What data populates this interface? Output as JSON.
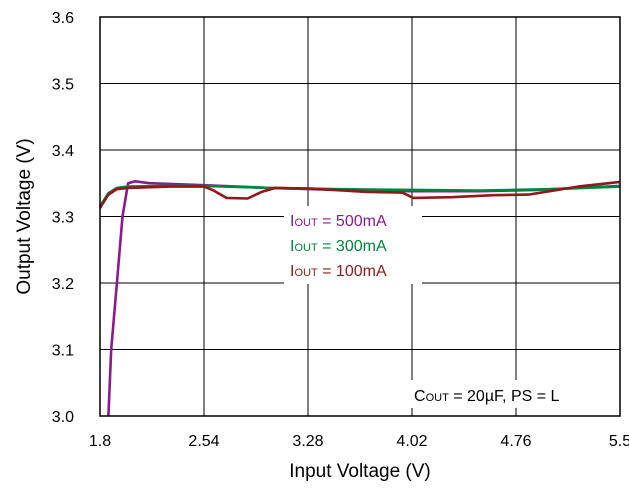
{
  "chart_data": {
    "type": "line",
    "xlabel": "Input Voltage (V)",
    "ylabel": "Output Voltage (V)",
    "xlim": [
      1.8,
      5.5
    ],
    "ylim": [
      3.0,
      3.6
    ],
    "x_ticks": [
      "1.8",
      "2.54",
      "3.28",
      "4.02",
      "4.76",
      "5.5"
    ],
    "y_ticks": [
      "3.6",
      "3.5",
      "3.4",
      "3.3",
      "3.2",
      "3.1",
      "3.0"
    ],
    "grid": true,
    "series": [
      {
        "name": "IOUT = 500mA",
        "color": "#8b1a8f",
        "points": [
          [
            1.86,
            3.0
          ],
          [
            1.88,
            3.1
          ],
          [
            1.92,
            3.2
          ],
          [
            1.96,
            3.3
          ],
          [
            2.0,
            3.35
          ],
          [
            2.05,
            3.353
          ],
          [
            2.15,
            3.35
          ],
          [
            2.3,
            3.349
          ],
          [
            2.54,
            3.347
          ],
          [
            3.0,
            3.343
          ],
          [
            3.5,
            3.34
          ],
          [
            4.0,
            3.338
          ],
          [
            4.5,
            3.338
          ],
          [
            4.9,
            3.34
          ],
          [
            5.2,
            3.343
          ],
          [
            5.5,
            3.346
          ]
        ]
      },
      {
        "name": "IOUT = 300mA",
        "color": "#00853e",
        "points": [
          [
            1.8,
            3.315
          ],
          [
            1.86,
            3.335
          ],
          [
            1.92,
            3.343
          ],
          [
            2.0,
            3.345
          ],
          [
            2.3,
            3.346
          ],
          [
            2.54,
            3.346
          ],
          [
            3.0,
            3.343
          ],
          [
            3.5,
            3.341
          ],
          [
            4.0,
            3.34
          ],
          [
            4.5,
            3.339
          ],
          [
            5.0,
            3.341
          ],
          [
            5.5,
            3.345
          ]
        ]
      },
      {
        "name": "IOUT = 100mA",
        "color": "#8b1c1c",
        "points": [
          [
            1.8,
            3.313
          ],
          [
            1.86,
            3.333
          ],
          [
            1.92,
            3.341
          ],
          [
            2.0,
            3.343
          ],
          [
            2.3,
            3.345
          ],
          [
            2.54,
            3.345
          ],
          [
            2.6,
            3.34
          ],
          [
            2.7,
            3.328
          ],
          [
            2.85,
            3.327
          ],
          [
            2.95,
            3.337
          ],
          [
            3.05,
            3.343
          ],
          [
            3.3,
            3.342
          ],
          [
            3.7,
            3.337
          ],
          [
            3.95,
            3.336
          ],
          [
            4.03,
            3.328
          ],
          [
            4.3,
            3.329
          ],
          [
            4.6,
            3.332
          ],
          [
            4.85,
            3.333
          ],
          [
            5.0,
            3.338
          ],
          [
            5.2,
            3.345
          ],
          [
            5.5,
            3.352
          ]
        ]
      }
    ],
    "legend_entries": [
      {
        "main": "I",
        "sub": "OUT",
        "rest": " = 500mA",
        "color": "#8b1a8f"
      },
      {
        "main": "I",
        "sub": "OUT",
        "rest": " = 300mA",
        "color": "#00853e"
      },
      {
        "main": "I",
        "sub": "OUT",
        "rest": " = 100mA",
        "color": "#8b1c1c"
      }
    ],
    "condition_note": {
      "main": "C",
      "sub": "OUT",
      "rest": " = 20µF, PS = L"
    }
  }
}
